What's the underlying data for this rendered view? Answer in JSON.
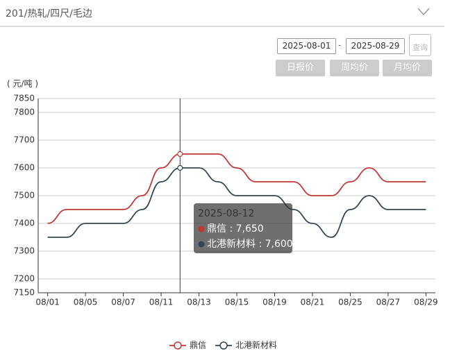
{
  "header": {
    "title": "201/热轧/四尺/毛边"
  },
  "controls": {
    "start_date": "2025-08-01",
    "separator": "-",
    "end_date": "2025-08-29",
    "query": "查询",
    "buttons": [
      "日报价",
      "周均价",
      "月均价"
    ]
  },
  "chart_data": {
    "type": "line",
    "y_label": "( 元/吨 )",
    "categories": [
      "08/01",
      null,
      "08/05",
      null,
      "08/07",
      null,
      "08/11",
      null,
      "08/13",
      null,
      "08/15",
      null,
      "08/19",
      null,
      "08/21",
      null,
      "08/25",
      null,
      "08/27",
      null,
      "08/29"
    ],
    "series": [
      {
        "name": "鼎信",
        "color": "#c23531",
        "values": [
          7400,
          7450,
          7450,
          7450,
          7450,
          7500,
          7600,
          7650,
          7650,
          7650,
          7600,
          7550,
          7550,
          7550,
          7500,
          7500,
          7550,
          7600,
          7550,
          7550,
          7550
        ]
      },
      {
        "name": "北港新材料",
        "color": "#2f4554",
        "values": [
          7350,
          7350,
          7400,
          7400,
          7400,
          7450,
          7550,
          7600,
          7600,
          7550,
          7500,
          7500,
          7500,
          7450,
          7400,
          7350,
          7450,
          7500,
          7450,
          7450,
          7450
        ]
      }
    ],
    "ylim": [
      7150,
      7850
    ],
    "yticks": [
      7150,
      7200,
      7300,
      7400,
      7500,
      7600,
      7700,
      7800,
      7850
    ],
    "grid": true,
    "legend": "bottom",
    "tooltip": {
      "title": "2025-08-12",
      "separator": " : ",
      "values": [
        7650,
        7600
      ],
      "value_labels": [
        "7,650",
        "7,600"
      ]
    }
  }
}
